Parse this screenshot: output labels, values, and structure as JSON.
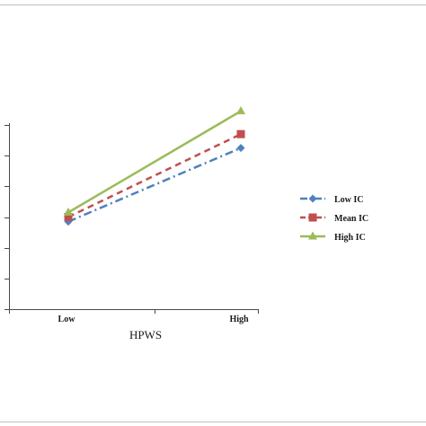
{
  "chart_data": {
    "type": "line",
    "categories": [
      "Low",
      "High"
    ],
    "xlabel": "HPWS",
    "ylabel": "",
    "title": "",
    "ylim": [
      0,
      6
    ],
    "yticks": [
      0,
      1,
      2,
      3,
      4,
      5,
      6
    ],
    "show_y_tick_labels": false,
    "grid": false,
    "legend_position": "right",
    "series": [
      {
        "name": "Low IC",
        "values": [
          2.85,
          5.25
        ],
        "color": "#4f81bd",
        "dash": "dash-dot",
        "marker": "diamond"
      },
      {
        "name": "Mean IC",
        "values": [
          3.0,
          5.7
        ],
        "color": "#c0504d",
        "dash": "dashed",
        "marker": "square"
      },
      {
        "name": "High IC",
        "values": [
          3.15,
          6.45
        ],
        "color": "#9bbb59",
        "dash": "solid",
        "marker": "triangle"
      }
    ]
  }
}
